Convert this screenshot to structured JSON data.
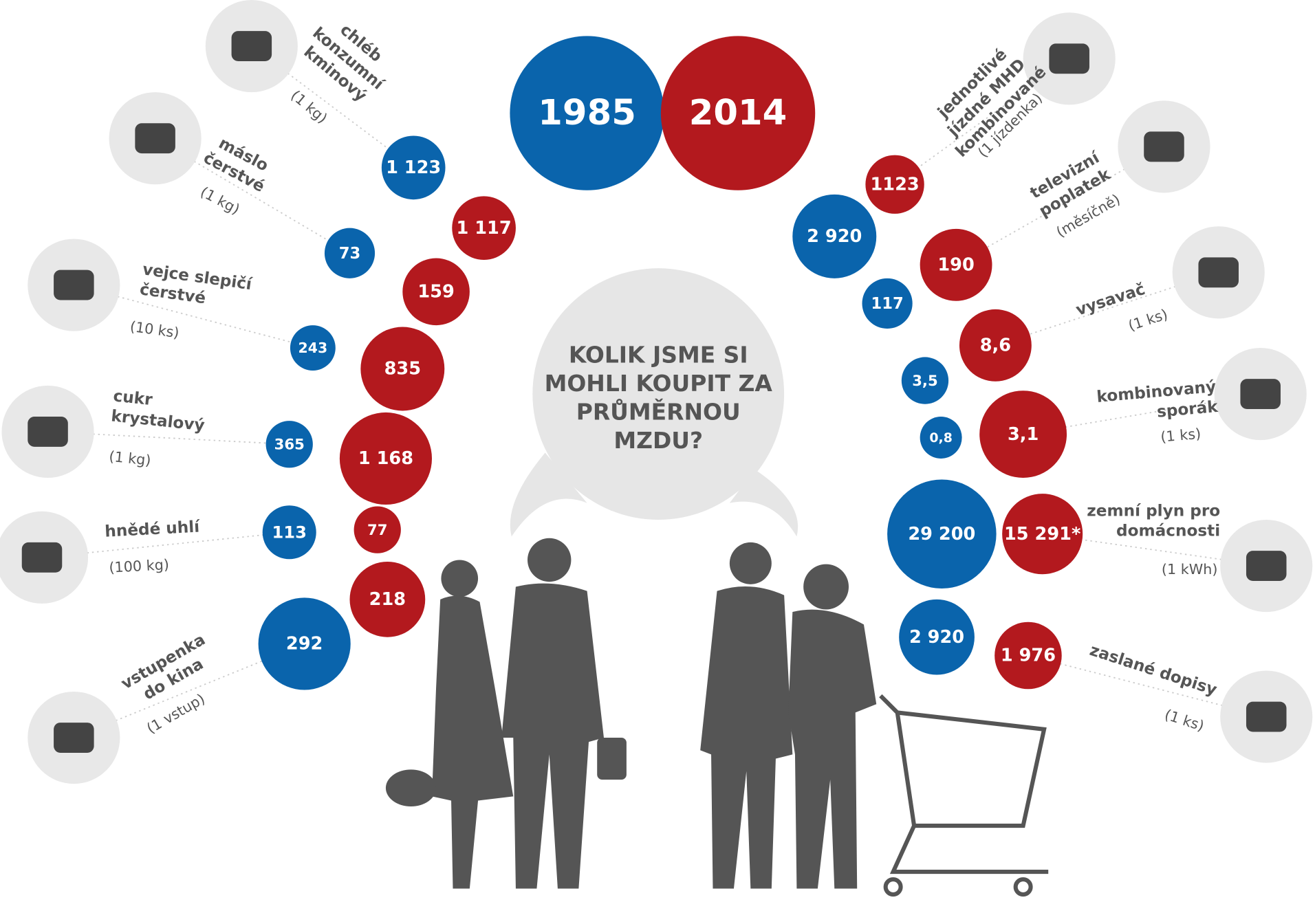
{
  "legend": {
    "year_1985": "1985",
    "year_2014": "2014"
  },
  "question": [
    "KOLIK JSME SI",
    "MOHLI KOUPIT ZA",
    "PRŮMĚRNOU",
    "MZDU?"
  ],
  "items": [
    {
      "label": [
        "chléb",
        "konzumní",
        "kminový"
      ],
      "unit": "(1 kg)",
      "value_1985": "1 123",
      "value_2014": "1 117"
    },
    {
      "label": [
        "máslo",
        "čerstvé"
      ],
      "unit": "(1 kg)",
      "value_1985": "73",
      "value_2014": "159"
    },
    {
      "label": [
        "vejce slepičí",
        "čerstvé"
      ],
      "unit": "(10 ks)",
      "value_1985": "243",
      "value_2014": "835"
    },
    {
      "label": [
        "cukr",
        "krystalový"
      ],
      "unit": "(1 kg)",
      "value_1985": "365",
      "value_2014": "1 168"
    },
    {
      "label": [
        "hnědé uhlí"
      ],
      "unit": "(100 kg)",
      "value_1985": "113",
      "value_2014": "77"
    },
    {
      "label": [
        "vstupenka",
        "do kina"
      ],
      "unit": "(1 vstup)",
      "value_1985": "292",
      "value_2014": "218"
    },
    {
      "label": [
        "jednotlivé",
        "jízdné MHD",
        "kombinované"
      ],
      "unit": "(1 jízdenka)",
      "value_1985": "2 920",
      "value_2014": "1123"
    },
    {
      "label": [
        "televizní",
        "poplatek"
      ],
      "unit": "(měsíčně)",
      "value_1985": "117",
      "value_2014": "190"
    },
    {
      "label": [
        "vysavač"
      ],
      "unit": "(1 ks)",
      "value_1985": "3,5",
      "value_2014": "8,6"
    },
    {
      "label": [
        "kombinovaný",
        "sporák"
      ],
      "unit": "(1 ks)",
      "value_1985": "0,8",
      "value_2014": "3,1"
    },
    {
      "label": [
        "zemní plyn pro",
        "domácnosti"
      ],
      "unit": "(1 kWh)",
      "value_1985": "29 200",
      "value_2014": "15 291*"
    },
    {
      "label": [
        "zaslané dopisy"
      ],
      "unit": "(1 ks)",
      "value_1985": "2 920",
      "value_2014": "1 976"
    }
  ]
}
